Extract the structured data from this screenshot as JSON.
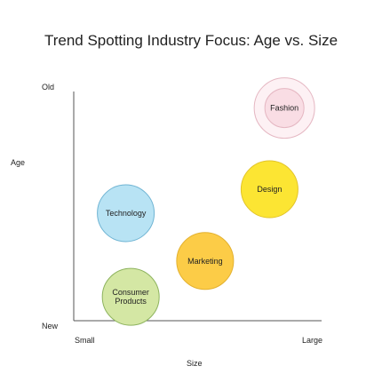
{
  "chart_data": {
    "type": "scatter",
    "title": "Trend Spotting Industry Focus: Age vs. Size",
    "xlabel": "Size",
    "ylabel": "Age",
    "x_ticks": [
      "Small",
      "Large"
    ],
    "y_ticks": [
      "New",
      "Old"
    ],
    "xlim": [
      0,
      10
    ],
    "ylim": [
      0,
      10
    ],
    "grid": false,
    "legend": "none",
    "points": [
      {
        "label": "Fashion",
        "x": 8.5,
        "y": 8.9,
        "color": "#f9dde4",
        "stroke": "#e5b7c2",
        "style": "outline"
      },
      {
        "label": "Design",
        "x": 7.9,
        "y": 5.5,
        "color": "#fce533",
        "stroke": "#e2c42a",
        "style": "filled"
      },
      {
        "label": "Technology",
        "x": 2.1,
        "y": 4.5,
        "color": "#b8e3f4",
        "stroke": "#6fb4d3",
        "style": "filled"
      },
      {
        "label": "Marketing",
        "x": 5.3,
        "y": 2.5,
        "color": "#fccc47",
        "stroke": "#e3b12f",
        "style": "filled"
      },
      {
        "label": "Consumer Products",
        "x": 2.3,
        "y": 1.0,
        "color": "#d4e7a4",
        "stroke": "#8db35e",
        "style": "filled"
      }
    ]
  }
}
